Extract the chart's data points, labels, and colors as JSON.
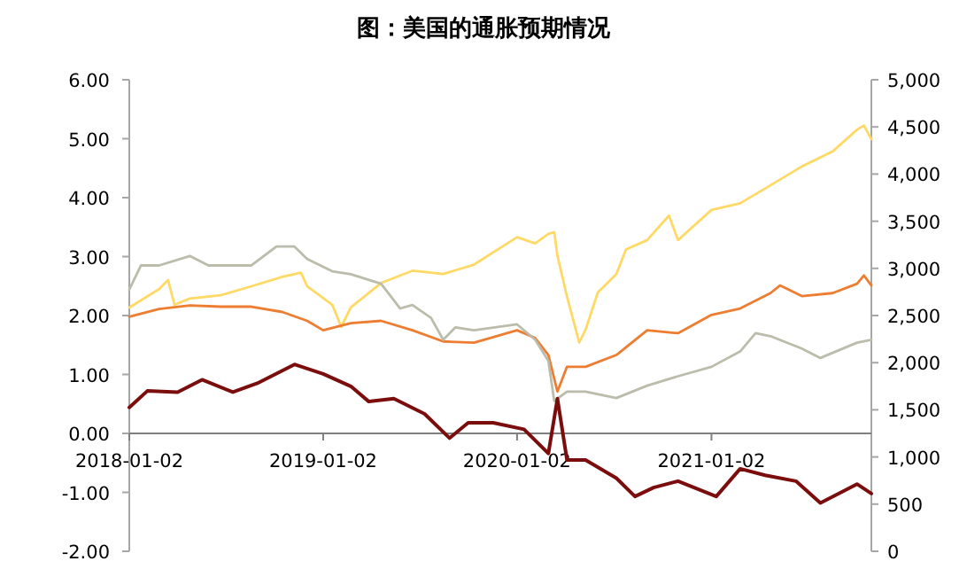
{
  "chart_data": {
    "type": "line",
    "title": "图：美国的通胀预期情况",
    "xlim": [
      "2018-01-02",
      "2021-10-30"
    ],
    "xticks": [
      "2018-01-02",
      "2019-01-02",
      "2020-01-02",
      "2021-01-02"
    ],
    "ylim": [
      -2,
      6
    ],
    "yticks": [
      {
        "value": -2,
        "label": "-2.00"
      },
      {
        "value": -1,
        "label": "-1.00"
      },
      {
        "value": 0,
        "label": "0.00"
      },
      {
        "value": 1,
        "label": "1.00"
      },
      {
        "value": 2,
        "label": "2.00"
      },
      {
        "value": 3,
        "label": "3.00"
      },
      {
        "value": 4,
        "label": "4.00"
      },
      {
        "value": 5,
        "label": "5.00"
      },
      {
        "value": 6,
        "label": "6.00"
      }
    ],
    "y2lim": [
      0,
      5000
    ],
    "y2ticks": [
      0,
      500,
      {
        "value": 1000,
        "label": "1,000"
      },
      {
        "value": 1500,
        "label": "1,500"
      },
      {
        "value": 2000,
        "label": "2,000"
      },
      {
        "value": 2500,
        "label": "2,500"
      },
      {
        "value": 3000,
        "label": "3,000"
      },
      {
        "value": 3500,
        "label": "3,500"
      },
      {
        "value": 4000,
        "label": "4,000"
      },
      {
        "value": 4500,
        "label": "4,500"
      },
      {
        "value": 5000,
        "label": "5,000"
      }
    ],
    "grid": false,
    "series": [
      {
        "color": "#ffd966",
        "axis": "y2",
        "x": [
          "2018-01-02",
          "2018-02-27",
          "2018-03-16",
          "2018-03-28",
          "2018-04-26",
          "2018-06-23",
          "2018-08-20",
          "2018-10-17",
          "2018-11-21",
          "2018-12-03",
          "2019-01-19",
          "2019-02-05",
          "2019-02-23",
          "2019-04-21",
          "2019-06-19",
          "2019-08-16",
          "2019-10-13",
          "2020-01-02",
          "2020-02-05",
          "2020-03-01",
          "2020-03-12",
          "2020-03-18",
          "2020-04-05",
          "2020-04-28",
          "2020-05-10",
          "2020-06-02",
          "2020-07-07",
          "2020-07-25",
          "2020-09-03",
          "2020-10-14",
          "2020-10-31",
          "2021-01-02",
          "2021-02-25",
          "2021-04-23",
          "2021-06-21",
          "2021-08-18",
          "2021-10-03",
          "2021-10-16",
          "2021-10-30"
        ],
        "values": [
          2585,
          2780,
          2877,
          2615,
          2680,
          2715,
          2810,
          2910,
          2955,
          2810,
          2615,
          2380,
          2585,
          2845,
          2975,
          2940,
          3040,
          3330,
          3265,
          3365,
          3383,
          3135,
          2700,
          2214,
          2350,
          2745,
          2940,
          3200,
          3300,
          3560,
          3300,
          3620,
          3690,
          3880,
          4080,
          4240,
          4470,
          4515,
          4370
        ]
      },
      {
        "color": "#ed7d31",
        "x": [
          "2018-01-02",
          "2018-02-27",
          "2018-04-26",
          "2018-06-23",
          "2018-08-20",
          "2018-10-17",
          "2018-12-03",
          "2019-01-02",
          "2019-02-23",
          "2019-04-21",
          "2019-06-19",
          "2019-08-16",
          "2019-10-13",
          "2020-01-02",
          "2020-02-05",
          "2020-03-01",
          "2020-03-18",
          "2020-04-05",
          "2020-05-10",
          "2020-07-07",
          "2020-09-03",
          "2020-10-31",
          "2021-01-02",
          "2021-02-25",
          "2021-04-23",
          "2021-05-11",
          "2021-06-21",
          "2021-08-18",
          "2021-10-03",
          "2021-10-16",
          "2021-10-30"
        ],
        "values": [
          1.98,
          2.11,
          2.17,
          2.15,
          2.15,
          2.06,
          1.91,
          1.75,
          1.87,
          1.91,
          1.75,
          1.56,
          1.54,
          1.75,
          1.62,
          1.33,
          0.71,
          1.13,
          1.13,
          1.33,
          1.75,
          1.7,
          2.01,
          2.12,
          2.38,
          2.51,
          2.33,
          2.38,
          2.54,
          2.68,
          2.51
        ]
      },
      {
        "color": "#bcbcab",
        "x": [
          "2018-01-02",
          "2018-01-24",
          "2018-02-27",
          "2018-04-26",
          "2018-05-31",
          "2018-08-20",
          "2018-10-06",
          "2018-11-09",
          "2018-12-03",
          "2019-01-19",
          "2019-02-23",
          "2019-04-21",
          "2019-05-27",
          "2019-06-19",
          "2019-07-24",
          "2019-08-16",
          "2019-09-08",
          "2019-10-13",
          "2020-01-02",
          "2020-02-05",
          "2020-03-01",
          "2020-03-12",
          "2020-04-05",
          "2020-05-10",
          "2020-07-07",
          "2020-09-03",
          "2020-10-31",
          "2021-01-02",
          "2021-02-25",
          "2021-03-26",
          "2021-04-23",
          "2021-06-21",
          "2021-07-26",
          "2021-10-03",
          "2021-10-30"
        ],
        "values": [
          2.44,
          2.85,
          2.85,
          3.01,
          2.85,
          2.85,
          3.17,
          3.17,
          2.96,
          2.75,
          2.7,
          2.54,
          2.12,
          2.18,
          1.96,
          1.59,
          1.8,
          1.75,
          1.85,
          1.59,
          1.23,
          0.55,
          0.71,
          0.71,
          0.6,
          0.81,
          0.97,
          1.13,
          1.39,
          1.7,
          1.65,
          1.44,
          1.28,
          1.54,
          1.59
        ]
      },
      {
        "color": "#7b0d0d",
        "x": [
          "2018-01-02",
          "2018-02-05",
          "2018-04-03",
          "2018-05-19",
          "2018-07-16",
          "2018-08-31",
          "2018-11-09",
          "2019-01-02",
          "2019-02-23",
          "2019-03-29",
          "2019-05-15",
          "2019-07-12",
          "2019-08-28",
          "2019-10-02",
          "2019-11-18",
          "2020-01-15",
          "2020-03-01",
          "2020-03-18",
          "2020-04-05",
          "2020-05-10",
          "2020-07-07",
          "2020-08-11",
          "2020-09-15",
          "2020-10-31",
          "2021-01-11",
          "2021-02-25",
          "2021-04-13",
          "2021-06-10",
          "2021-07-26",
          "2021-10-03",
          "2021-10-30"
        ],
        "values": [
          0.44,
          0.72,
          0.7,
          0.91,
          0.7,
          0.85,
          1.17,
          1.01,
          0.8,
          0.54,
          0.59,
          0.33,
          -0.08,
          0.18,
          0.18,
          0.07,
          -0.34,
          0.59,
          -0.45,
          -0.45,
          -0.76,
          -1.07,
          -0.92,
          -0.81,
          -1.07,
          -0.6,
          -0.71,
          -0.81,
          -1.18,
          -0.86,
          -1.02
        ]
      }
    ]
  }
}
